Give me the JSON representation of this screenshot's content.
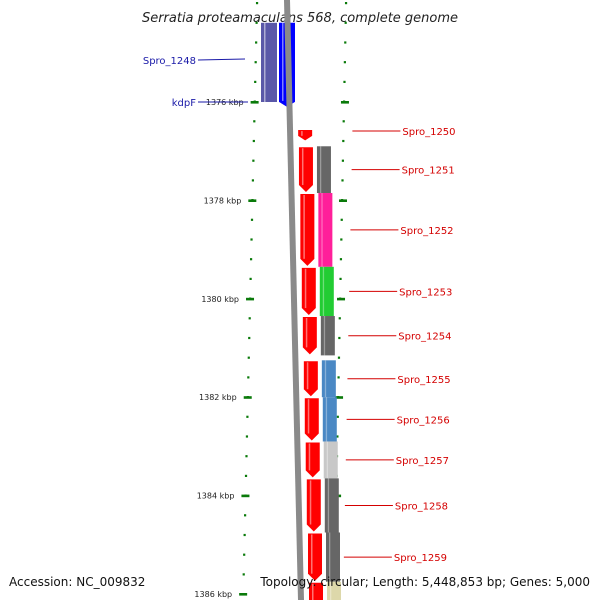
{
  "title": "Serratia proteamaculans 568, complete genome",
  "footer": {
    "accession": "Accession: NC_009832",
    "summary": "Topology: circular; Length: 5,448,853 bp; Genes: 5,000"
  },
  "colors": {
    "backbone": "#8a8a8a",
    "forward_arrow": "#ff0000",
    "left_label": "#1a1aa8",
    "right_label": "#d40000",
    "tick": "#0a7a0a"
  },
  "chart_data": {
    "type": "genome-map",
    "scale_labels": [
      {
        "kbp": 1376,
        "label": "1376 kbp"
      },
      {
        "kbp": 1378,
        "label": "1378 kbp"
      },
      {
        "kbp": 1380,
        "label": "1380 kbp"
      },
      {
        "kbp": 1382,
        "label": "1382 kbp"
      },
      {
        "kbp": 1384,
        "label": "1384 kbp"
      },
      {
        "kbp": 1386,
        "label": "1386 kbp"
      }
    ],
    "left_genes": [
      {
        "name": "Spro_1248",
        "start_kbp": 1375.0,
        "end_kbp": 1376.0,
        "color": "#5a58a8",
        "strand": "reverse"
      },
      {
        "name": "kdpF",
        "start_kbp": 1375.0,
        "end_kbp": 1376.1,
        "color": "#0000ff",
        "strand": "reverse"
      }
    ],
    "right_genes": [
      {
        "name": "Spro_1250",
        "start_kbp": 1376.55,
        "end_kbp": 1376.8,
        "cog_color": null
      },
      {
        "name": "Spro_1251",
        "start_kbp": 1376.9,
        "end_kbp": 1377.85,
        "cog_color": "#666666"
      },
      {
        "name": "Spro_1252",
        "start_kbp": 1377.85,
        "end_kbp": 1379.35,
        "cog_color": "#ff1f9a"
      },
      {
        "name": "Spro_1253",
        "start_kbp": 1379.35,
        "end_kbp": 1380.35,
        "cog_color": "#22cc33"
      },
      {
        "name": "Spro_1254",
        "start_kbp": 1380.35,
        "end_kbp": 1381.15,
        "cog_color": "#666666"
      },
      {
        "name": "Spro_1255",
        "start_kbp": 1381.25,
        "end_kbp": 1382.0,
        "cog_color": "#4a88c4"
      },
      {
        "name": "Spro_1256",
        "start_kbp": 1382.0,
        "end_kbp": 1382.9,
        "cog_color": "#4a88c4"
      },
      {
        "name": "Spro_1257",
        "start_kbp": 1382.9,
        "end_kbp": 1383.65,
        "cog_color": "#c8c8c8"
      },
      {
        "name": "Spro_1258",
        "start_kbp": 1383.65,
        "end_kbp": 1384.75,
        "cog_color": "#666666"
      },
      {
        "name": "Spro_1259",
        "start_kbp": 1384.75,
        "end_kbp": 1385.75,
        "cog_color": "#666666"
      },
      {
        "name": "",
        "start_kbp": 1385.75,
        "end_kbp": 1386.5,
        "cog_color": "#ddd8aa"
      }
    ]
  }
}
